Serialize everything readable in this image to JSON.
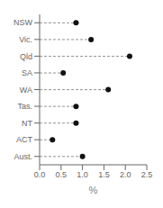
{
  "chart_data": {
    "type": "dot",
    "orientation": "horizontal",
    "categories": [
      "NSW",
      "Vic.",
      "Qld",
      "SA",
      "WA",
      "Tas.",
      "NT",
      "ACT",
      "Aust."
    ],
    "values": [
      0.85,
      1.2,
      2.1,
      0.55,
      1.6,
      0.85,
      0.85,
      0.3,
      1.0
    ],
    "color": "#111111",
    "line_style": "dashed",
    "marker": "circle",
    "xlabel": "%",
    "xlim": [
      0.0,
      2.5
    ],
    "xticks": [
      {
        "value": 0,
        "label": "0.0"
      },
      0.5,
      {
        "value": 1,
        "label": "1.0"
      },
      1.5,
      {
        "value": 2,
        "label": "2.0"
      },
      2.5
    ],
    "grid": false
  }
}
